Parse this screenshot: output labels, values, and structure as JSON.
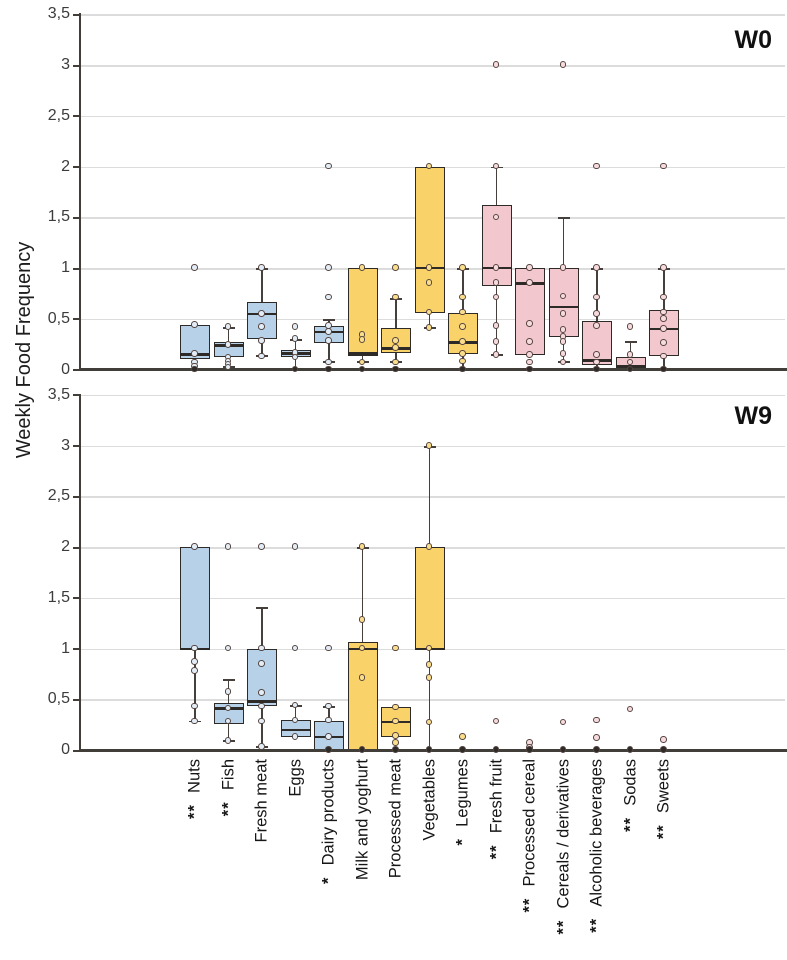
{
  "figure": {
    "ylabel": "Weekly Food Frequency"
  },
  "colors": {
    "blue": "#b7d1e8",
    "yellow": "#f9d36a",
    "pink": "#f3c7ce",
    "blue_point": "#e3edf7",
    "yellow_point": "#fbde8b",
    "pink_point": "#f7dade",
    "dark_point": "#2e2a27",
    "box_border": "#2d2a27",
    "whisker": "#45403b",
    "grid": "#dcdcdc",
    "axis": "#413d39"
  },
  "chart_data": {
    "type": "box",
    "title": "",
    "xlabel": "",
    "ylabel": "Weekly Food Frequency",
    "ylim": [
      0,
      3.5
    ],
    "grid": true,
    "decimal_separator": ",",
    "yticks": [
      0,
      0.5,
      1,
      1.5,
      2,
      2.5,
      3,
      3.5
    ],
    "ytick_labels": [
      "0",
      "0,5",
      "1",
      "1,5",
      "2",
      "2,5",
      "3",
      "3,5"
    ],
    "categories": [
      {
        "label": "Nuts",
        "significance": "**",
        "group": "blue"
      },
      {
        "label": "Fish",
        "significance": "**",
        "group": "blue"
      },
      {
        "label": "Fresh meat",
        "significance": "",
        "group": "blue"
      },
      {
        "label": "Eggs",
        "significance": "",
        "group": "blue"
      },
      {
        "label": "Dairy products",
        "significance": "*",
        "group": "blue"
      },
      {
        "label": "Milk and yoghurt",
        "significance": "",
        "group": "yellow"
      },
      {
        "label": "Processed meat",
        "significance": "",
        "group": "yellow"
      },
      {
        "label": "Vegetables",
        "significance": "",
        "group": "yellow"
      },
      {
        "label": "Legumes",
        "significance": "*",
        "group": "yellow"
      },
      {
        "label": "Fresh fruit",
        "significance": "**",
        "group": "pink"
      },
      {
        "label": "Processed cereal",
        "significance": "**",
        "group": "pink"
      },
      {
        "label": "Cereals / derivatives",
        "significance": "**",
        "group": "pink"
      },
      {
        "label": "Alcoholic beverages",
        "significance": "**",
        "group": "pink"
      },
      {
        "label": "Sodas",
        "significance": "**",
        "group": "pink"
      },
      {
        "label": "Sweets",
        "significance": "**",
        "group": "pink"
      }
    ],
    "panels": [
      {
        "label": "W0",
        "series": [
          {
            "low": 0,
            "q1": 0.1,
            "median": 0.15,
            "q3": 0.44,
            "high": null,
            "points": [
              1.0,
              0.44,
              0.15,
              0.07,
              0.03,
              0
            ]
          },
          {
            "low": 0.02,
            "q1": 0.12,
            "median": 0.24,
            "q3": 0.27,
            "high": 0.42,
            "points": [
              0.42,
              0.24,
              0.12,
              0.08,
              0.05,
              0.02
            ]
          },
          {
            "low": 0.13,
            "q1": 0.3,
            "median": 0.55,
            "q3": 0.67,
            "high": 1.0,
            "points": [
              1.0,
              0.55,
              0.42,
              0.28,
              0.13
            ]
          },
          {
            "low": 0,
            "q1": 0.12,
            "median": 0.16,
            "q3": 0.19,
            "high": 0.3,
            "points": [
              0.42,
              0.3,
              0.16,
              0.12,
              0
            ]
          },
          {
            "low": 0.07,
            "q1": 0.26,
            "median": 0.37,
            "q3": 0.43,
            "high": 0.5,
            "points": [
              2.0,
              1.0,
              0.71,
              0.43,
              0.37,
              0.28,
              0.07,
              0
            ]
          },
          {
            "low": 0.07,
            "q1": 0.13,
            "median": 0.16,
            "q3": 1.0,
            "high": null,
            "points": [
              1.0,
              0.34,
              0.29,
              0.07,
              0
            ]
          },
          {
            "low": 0.07,
            "q1": 0.16,
            "median": 0.21,
            "q3": 0.41,
            "high": 0.7,
            "points": [
              1.0,
              0.71,
              0.28,
              0.21,
              0.07,
              0
            ]
          },
          {
            "low": 0.41,
            "q1": 0.56,
            "median": 1.0,
            "q3": 2.0,
            "high": null,
            "points": [
              2.0,
              1.0,
              0.85,
              0.56,
              0.41
            ]
          },
          {
            "low": 0,
            "q1": 0.15,
            "median": 0.27,
            "q3": 0.56,
            "high": 1.0,
            "points": [
              1.0,
              0.71,
              0.56,
              0.42,
              0.27,
              0.15,
              0.08,
              0
            ]
          },
          {
            "low": 0.14,
            "q1": 0.82,
            "median": 1.0,
            "q3": 1.62,
            "high": 2.0,
            "points": [
              3.0,
              2.0,
              1.5,
              1.0,
              0.85,
              0.71,
              0.43,
              0.27,
              0.14
            ]
          },
          {
            "low": null,
            "q1": 0.14,
            "median": 0.85,
            "q3": 1.0,
            "high": null,
            "points": [
              1.0,
              0.85,
              0.45,
              0.27,
              0.14,
              0.07,
              0
            ]
          },
          {
            "low": 0.07,
            "q1": 0.32,
            "median": 0.62,
            "q3": 1.0,
            "high": 1.5,
            "points": [
              3.0,
              1.0,
              0.72,
              0.55,
              0.39,
              0.32,
              0.27,
              0.15,
              0.07
            ]
          },
          {
            "low": 0,
            "q1": 0.04,
            "median": 0.09,
            "q3": 0.48,
            "high": 1.0,
            "points": [
              2.0,
              1.0,
              0.71,
              0.55,
              0.43,
              0.14,
              0.07,
              0
            ]
          },
          {
            "low": null,
            "q1": 0.0,
            "median": 0.03,
            "q3": 0.12,
            "high": 0.28,
            "points": [
              0.42,
              0.14,
              0.07,
              0
            ]
          },
          {
            "low": 0,
            "q1": 0.13,
            "median": 0.4,
            "q3": 0.59,
            "high": 1.0,
            "points": [
              2.0,
              1.0,
              0.71,
              0.56,
              0.5,
              0.4,
              0.26,
              0.13,
              0
            ]
          }
        ]
      },
      {
        "label": "W9",
        "series": [
          {
            "low": 0.28,
            "q1": 1.0,
            "median": 1.0,
            "q3": 2.0,
            "high": null,
            "points": [
              2.0,
              1.0,
              0.87,
              0.78,
              0.43,
              0.28
            ]
          },
          {
            "low": 0.09,
            "q1": 0.26,
            "median": 0.41,
            "q3": 0.46,
            "high": 0.7,
            "points": [
              2.0,
              1.0,
              0.57,
              0.41,
              0.28,
              0.09
            ]
          },
          {
            "low": 0.03,
            "q1": 0.43,
            "median": 0.48,
            "q3": 1.0,
            "high": 1.41,
            "points": [
              2.0,
              1.0,
              0.85,
              0.56,
              0.43,
              0.28,
              0.03
            ]
          },
          {
            "low": null,
            "q1": 0.13,
            "median": 0.2,
            "q3": 0.3,
            "high": 0.44,
            "points": [
              2.0,
              1.0,
              0.44,
              0.29,
              0.13
            ]
          },
          {
            "low": null,
            "q1": 0.0,
            "median": 0.13,
            "q3": 0.29,
            "high": 0.43,
            "points": [
              1.0,
              0.43,
              0.29,
              0.13,
              0
            ]
          },
          {
            "low": null,
            "q1": 0.0,
            "median": 1.0,
            "q3": 1.06,
            "high": 2.0,
            "points": [
              2.0,
              1.28,
              1.0,
              0.71,
              0
            ]
          },
          {
            "low": null,
            "q1": 0.13,
            "median": 0.28,
            "q3": 0.42,
            "high": null,
            "points": [
              1.0,
              0.42,
              0.28,
              0.14,
              0.07,
              0
            ]
          },
          {
            "low": 0,
            "q1": 1.0,
            "median": 1.0,
            "q3": 2.0,
            "high": 3.0,
            "points": [
              3.0,
              2.0,
              1.0,
              0.84,
              0.71,
              0.27,
              0
            ]
          },
          {
            "low": null,
            "q1": null,
            "median": null,
            "q3": null,
            "high": null,
            "points": [
              0.13,
              0
            ]
          },
          {
            "low": null,
            "q1": null,
            "median": null,
            "q3": null,
            "high": null,
            "points": [
              0.28,
              0
            ]
          },
          {
            "low": null,
            "q1": null,
            "median": null,
            "q3": null,
            "high": null,
            "points": [
              0.07,
              0.02,
              0
            ]
          },
          {
            "low": null,
            "q1": null,
            "median": null,
            "q3": null,
            "high": null,
            "points": [
              0.27,
              0
            ]
          },
          {
            "low": null,
            "q1": null,
            "median": null,
            "q3": null,
            "high": null,
            "points": [
              0.29,
              0.12,
              0
            ]
          },
          {
            "low": null,
            "q1": null,
            "median": null,
            "q3": null,
            "high": null,
            "points": [
              0.4,
              0
            ]
          },
          {
            "low": null,
            "q1": null,
            "median": null,
            "q3": null,
            "high": null,
            "points": [
              0.1,
              0
            ]
          }
        ]
      }
    ]
  }
}
